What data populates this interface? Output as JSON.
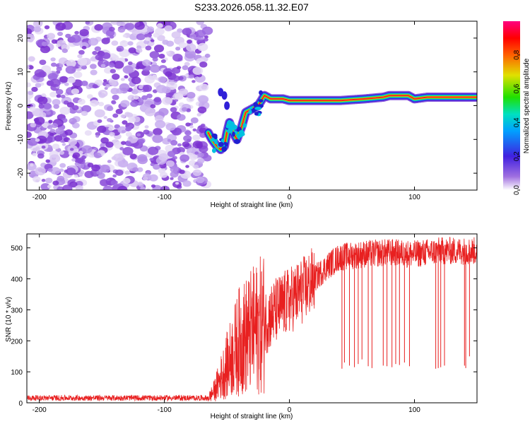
{
  "figure_title": "S233.2026.058.11.32.E07",
  "chart_data": [
    {
      "type": "heatmap",
      "title": "S233.2026.058.11.32.E07",
      "xlabel": "Height of straight line (km)",
      "ylabel": "Frequency (Hz)",
      "xlim": [
        -210,
        150
      ],
      "ylim": [
        -25,
        25
      ],
      "xticks": [
        -200,
        -100,
        0,
        100
      ],
      "yticks": [
        -20,
        -10,
        0,
        10,
        20
      ],
      "colorbar": {
        "label": "Normalized spectral amplitude",
        "range": [
          0,
          1
        ],
        "ticks": [
          0.0,
          0.2,
          0.4,
          0.6,
          0.8
        ],
        "colormap": "rainbow (violet-blue-cyan-green-yellow-red-magenta)"
      },
      "noise_region_x": [
        -210,
        -65
      ],
      "signal_track": {
        "x": [
          -65,
          -62,
          -58,
          -55,
          -52,
          -50,
          -48,
          -45,
          -42,
          -38,
          -35,
          -30,
          -25,
          -20,
          -15,
          -10,
          -5,
          0,
          20,
          40,
          60,
          75,
          80,
          85,
          90,
          95,
          100,
          110,
          130,
          150
        ],
        "freq_hz": [
          -8,
          -10,
          -12,
          -13,
          -12,
          -8,
          -5,
          -8,
          -10,
          -6,
          -2,
          -1,
          0,
          3,
          2,
          2,
          2,
          1.5,
          1.5,
          1.5,
          2,
          2.5,
          3,
          3,
          3,
          3,
          2,
          2.5,
          2.5,
          2.5
        ]
      }
    },
    {
      "type": "line",
      "xlabel": "Height of straight line (km)",
      "ylabel": "SNR (10 * v/v)",
      "xlim": [
        -210,
        150
      ],
      "ylim": [
        0,
        545
      ],
      "xticks": [
        -200,
        -100,
        0,
        100
      ],
      "yticks": [
        0,
        100,
        200,
        300,
        400,
        500
      ],
      "series": [
        {
          "name": "SNR",
          "color": "#e82020",
          "envelope_x": [
            -210,
            -65,
            -60,
            -50,
            -40,
            -30,
            -20,
            -10,
            0,
            10,
            20,
            30,
            40,
            60,
            80,
            100,
            120,
            150
          ],
          "envelope_mean": [
            15,
            15,
            40,
            120,
            200,
            230,
            260,
            300,
            330,
            360,
            400,
            440,
            470,
            480,
            485,
            480,
            490,
            490
          ],
          "dropout_x": [
            42,
            44,
            48,
            52,
            55,
            58,
            63,
            66,
            75,
            78,
            82,
            85,
            88,
            92,
            96,
            117,
            119,
            121,
            124,
            140,
            141,
            144
          ],
          "dropout_y": [
            110,
            130,
            120,
            115,
            125,
            140,
            118,
            112,
            120,
            118,
            115,
            125,
            122,
            130,
            118,
            110,
            112,
            115,
            120,
            120,
            112,
            150
          ]
        }
      ]
    }
  ]
}
